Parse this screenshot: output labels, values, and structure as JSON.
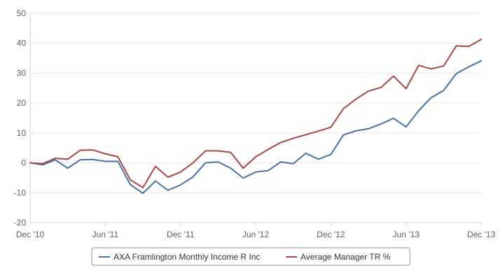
{
  "chart_data": {
    "type": "line",
    "title": "",
    "xlabel": "",
    "ylabel": "",
    "ylim": [
      -20,
      50
    ],
    "yticks": [
      -20,
      -10,
      0,
      10,
      20,
      30,
      40,
      50
    ],
    "xticks": [
      "Dec '10",
      "Jun '11",
      "Dec '11",
      "Jun '12",
      "Dec '12",
      "Jun '13",
      "Dec '13"
    ],
    "grid": "horizontal",
    "legend_position": "bottom-center",
    "x": [
      "2010-12",
      "2011-01",
      "2011-02",
      "2011-03",
      "2011-04",
      "2011-05",
      "2011-06",
      "2011-07",
      "2011-08",
      "2011-09",
      "2011-10",
      "2011-11",
      "2011-12",
      "2012-01",
      "2012-02",
      "2012-03",
      "2012-04",
      "2012-05",
      "2012-06",
      "2012-07",
      "2012-08",
      "2012-09",
      "2012-10",
      "2012-11",
      "2012-12",
      "2013-01",
      "2013-02",
      "2013-03",
      "2013-04",
      "2013-05",
      "2013-06",
      "2013-07",
      "2013-08",
      "2013-09",
      "2013-10",
      "2013-11",
      "2013-12"
    ],
    "series": [
      {
        "name": "AXA Framlington Monthly Income R Inc",
        "color": "#4572a7",
        "values": [
          0,
          -0.7,
          1,
          -1.8,
          1,
          1.1,
          0.5,
          0.5,
          -7.3,
          -10.2,
          -6.1,
          -9.2,
          -7.4,
          -4.7,
          0,
          0.3,
          -1.8,
          -5.1,
          -3.1,
          -2.6,
          0.3,
          -0.3,
          3.2,
          1.2,
          2.8,
          9.3,
          10.7,
          11.4,
          13,
          14.9,
          12,
          17.4,
          21.8,
          24.2,
          29.8,
          32.1,
          34.1
        ]
      },
      {
        "name": "Average Manager TR %",
        "color": "#aa4643",
        "values": [
          0,
          -0.3,
          1.5,
          1.2,
          4.2,
          4.3,
          3,
          2,
          -5.7,
          -8.3,
          -1.2,
          -4.8,
          -3.1,
          0,
          4,
          4,
          3.5,
          -1.8,
          2,
          4.5,
          6.8,
          8.2,
          9.4,
          10.6,
          11.9,
          18.1,
          21.3,
          24,
          25.2,
          29,
          24.8,
          32.6,
          31.4,
          32.4,
          39.1,
          38.9,
          41.3
        ]
      }
    ]
  }
}
